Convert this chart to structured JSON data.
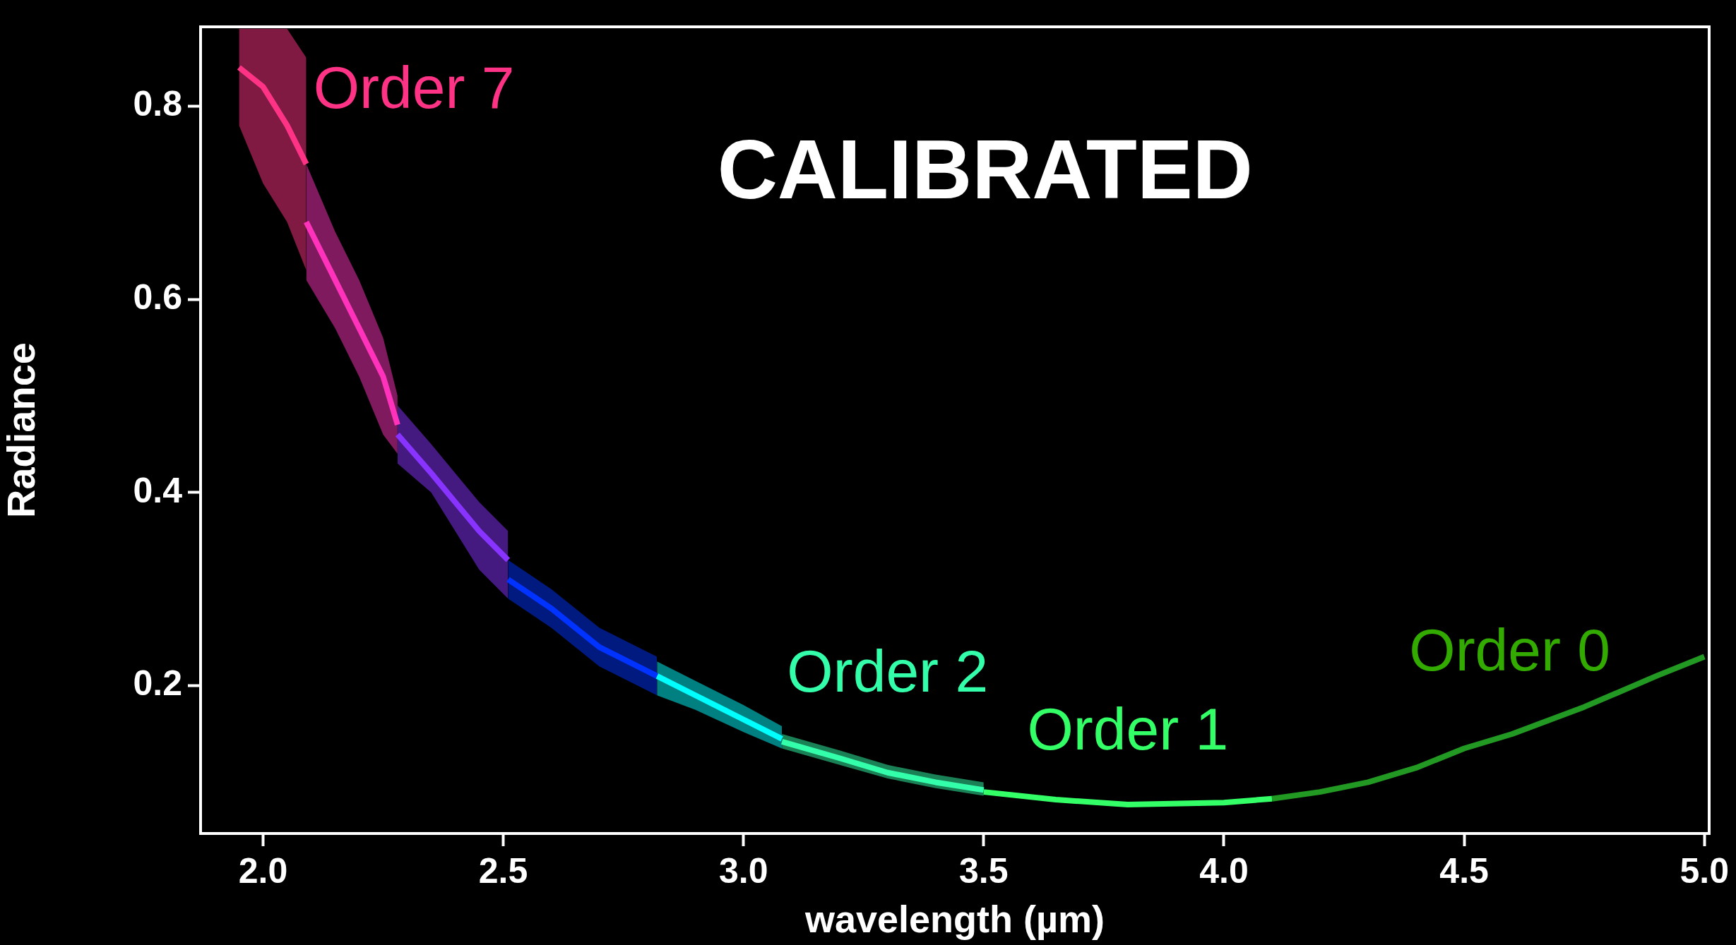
{
  "chart_data": {
    "type": "line",
    "title": "CALIBRATED",
    "xlabel": "wavelength (µm)",
    "ylabel": "Radiance",
    "xlim": [
      1.87,
      5.01
    ],
    "ylim": [
      0.047,
      0.882
    ],
    "xticks": [
      {
        "value": 2.0,
        "label": "2.0"
      },
      2.5,
      {
        "value": 3.0,
        "label": "3.0"
      },
      3.5,
      {
        "value": 4.0,
        "label": "4.0"
      },
      4.5,
      {
        "value": 5.0,
        "label": "5.0"
      }
    ],
    "yticks": [
      0.2,
      0.4,
      0.6,
      0.8
    ],
    "grid": false,
    "legend": false,
    "marker": "none",
    "line_style": "solid",
    "series": [
      {
        "name": "Order 7",
        "color": "#ff3385",
        "x": [
          1.95,
          2.0,
          2.05,
          2.09
        ],
        "values": [
          0.84,
          0.82,
          0.78,
          0.74
        ],
        "lower": [
          0.78,
          0.72,
          0.68,
          0.63
        ],
        "upper": [
          0.88,
          0.88,
          0.88,
          0.85
        ]
      },
      {
        "color": "#ff33bb",
        "x": [
          2.09,
          2.15,
          2.2,
          2.25,
          2.28
        ],
        "values": [
          0.68,
          0.62,
          0.57,
          0.52,
          0.47
        ],
        "lower": [
          0.62,
          0.57,
          0.52,
          0.46,
          0.44
        ],
        "upper": [
          0.74,
          0.67,
          0.62,
          0.56,
          0.5
        ]
      },
      {
        "color": "#8833ff",
        "x": [
          2.28,
          2.35,
          2.4,
          2.45,
          2.51
        ],
        "values": [
          0.46,
          0.42,
          0.39,
          0.36,
          0.33
        ],
        "lower": [
          0.43,
          0.4,
          0.36,
          0.32,
          0.29
        ],
        "upper": [
          0.49,
          0.45,
          0.42,
          0.39,
          0.36
        ]
      },
      {
        "color": "#0033ff",
        "x": [
          2.51,
          2.6,
          2.7,
          2.82
        ],
        "values": [
          0.31,
          0.28,
          0.24,
          0.21
        ],
        "lower": [
          0.29,
          0.26,
          0.22,
          0.19
        ],
        "upper": [
          0.33,
          0.3,
          0.26,
          0.23
        ]
      },
      {
        "color": "#00ffff",
        "x": [
          2.82,
          2.9,
          3.0,
          3.08
        ],
        "values": [
          0.21,
          0.19,
          0.165,
          0.145
        ],
        "lower": [
          0.19,
          0.175,
          0.152,
          0.135
        ],
        "upper": [
          0.225,
          0.205,
          0.18,
          0.158
        ]
      },
      {
        "name": "Order 2",
        "color": "#33ffaa",
        "x": [
          3.08,
          3.2,
          3.3,
          3.4,
          3.5
        ],
        "values": [
          0.142,
          0.125,
          0.11,
          0.1,
          0.092
        ],
        "lower": [
          0.135,
          0.118,
          0.104,
          0.094,
          0.086
        ],
        "upper": [
          0.15,
          0.133,
          0.118,
          0.108,
          0.1
        ]
      },
      {
        "name": "Order 1",
        "color": "#33ff66",
        "x": [
          3.5,
          3.65,
          3.8,
          4.0,
          4.1
        ],
        "values": [
          0.09,
          0.082,
          0.077,
          0.079,
          0.083
        ]
      },
      {
        "name": "Order 0",
        "color": "#229922",
        "x": [
          4.1,
          4.2,
          4.3,
          4.4,
          4.5,
          4.6,
          4.75,
          4.9,
          5.0
        ],
        "values": [
          0.083,
          0.09,
          0.1,
          0.115,
          0.135,
          0.15,
          0.178,
          0.21,
          0.23
        ]
      }
    ]
  }
}
